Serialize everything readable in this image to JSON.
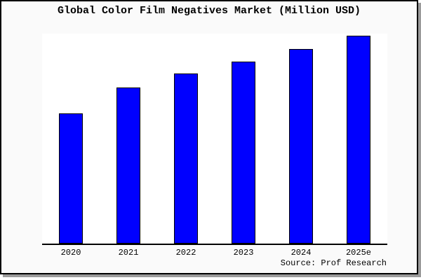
{
  "window": {
    "background_color": "#fafafa",
    "border_color": "#000000",
    "shadow_color": "#9b9b9b",
    "plot_background_color": "#ffffff"
  },
  "footer": {
    "source": "Source: Prof Research"
  },
  "chart_data": {
    "type": "bar",
    "title": "Global Color Film Negatives Market (Million USD)",
    "categories": [
      "2020",
      "2021",
      "2022",
      "2023",
      "2024",
      "2025e"
    ],
    "values": [
      62.7,
      75.0,
      81.7,
      87.7,
      93.7,
      100.0
    ],
    "xlabel": "",
    "ylabel": "",
    "ylim": [
      0,
      101
    ],
    "grid": false,
    "legend": false,
    "y_axis_visible": false,
    "bar_color": "#0000ff",
    "bar_border_color": "#000000",
    "axis_line_color": "#000000"
  }
}
